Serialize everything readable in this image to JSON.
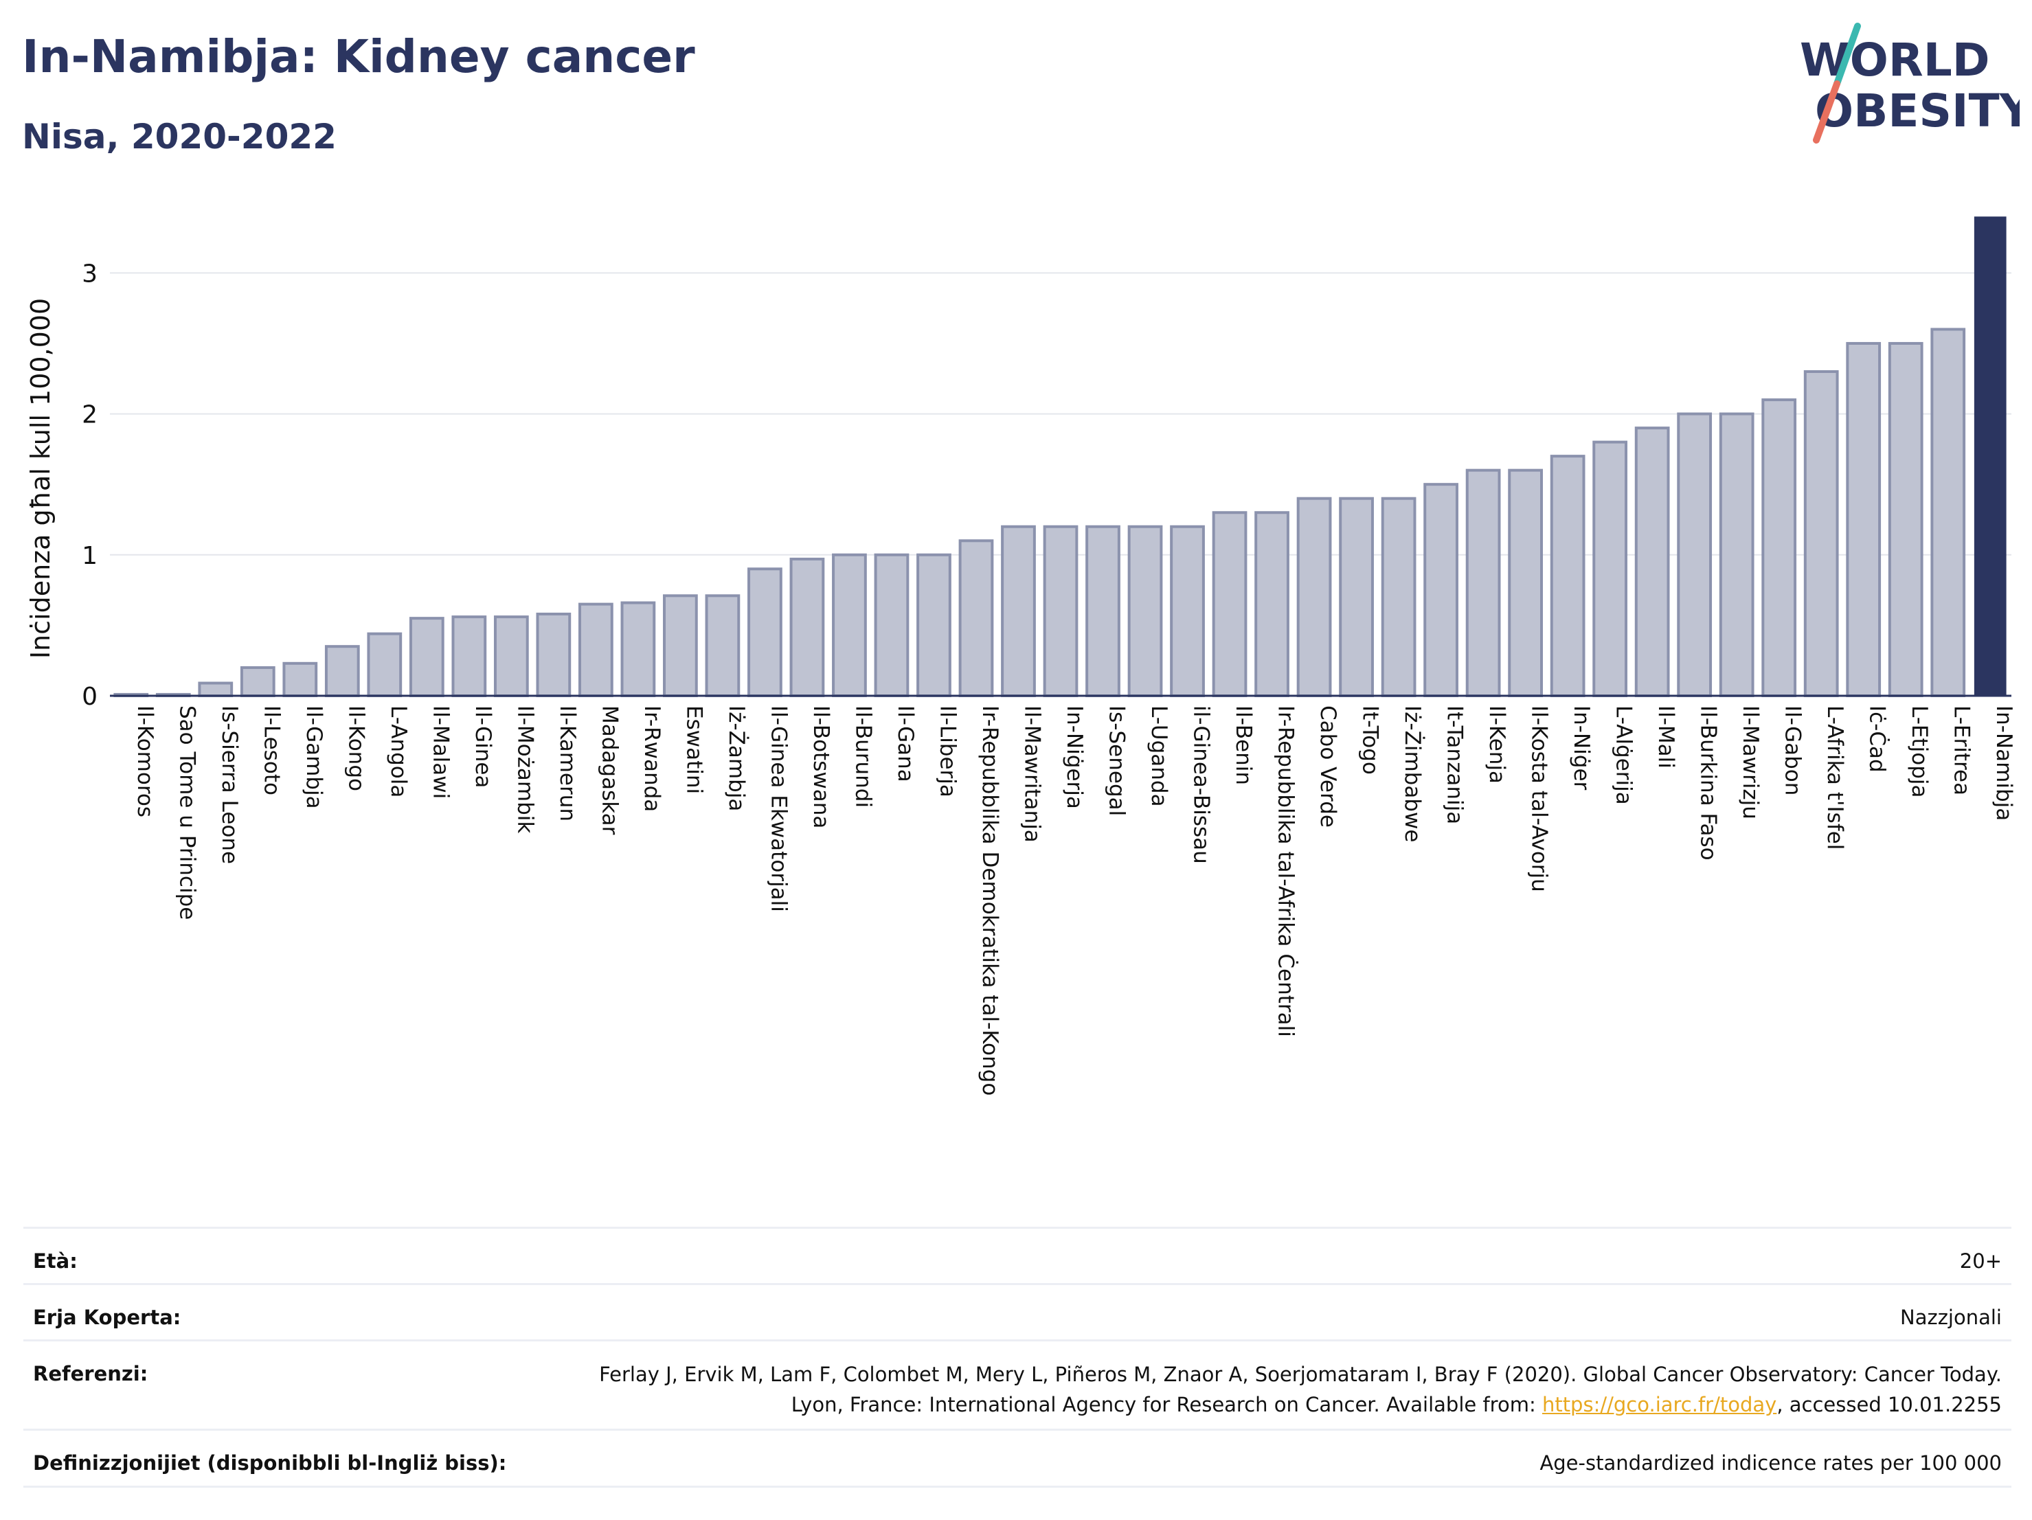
{
  "header": {
    "title": "In-Namibja: Kidney cancer",
    "subtitle": "Nisa, 2020-2022"
  },
  "logo": {
    "line1": "WORLD",
    "line2": "OBESITY"
  },
  "colors": {
    "bar_fill": "#bfc3d2",
    "bar_stroke": "#8b92ad",
    "highlight_bar": "#2b3560",
    "title": "#2b3560",
    "logo_slash_teal": "#3bb8b0",
    "logo_slash_coral": "#e8705e",
    "link": "#e8a820"
  },
  "chart_data": {
    "type": "bar",
    "title": "In-Namibja: Kidney cancer",
    "subtitle": "Nisa, 2020-2022",
    "xlabel": "",
    "ylabel": "Inċidenza għal kull 100,000",
    "ylim": [
      0,
      3.45
    ],
    "yticks": [
      0,
      1,
      2,
      3
    ],
    "grid": true,
    "highlight": "In-Namibja",
    "categories": [
      "Il-Komoros",
      "Sao Tome u Principe",
      "Is-Sierra Leone",
      "Il-Lesoto",
      "Il-Gambja",
      "Il-Kongo",
      "L-Angola",
      "Il-Malawi",
      "Il-Ginea",
      "Il-Możambik",
      "Il-Kamerun",
      "Madagaskar",
      "Ir-Rwanda",
      "Eswatini",
      "Iż-Żambja",
      "Il-Ginea Ekwatorjali",
      "Il-Botswana",
      "Il-Burundi",
      "Il-Gana",
      "Il-Liberja",
      "Ir-Repubblika Demokratika tal-Kongo",
      "Il-Mawritanja",
      "In-Niġerja",
      "Is-Senegal",
      "L-Uganda",
      "il-Ginea-Bissau",
      "Il-Benin",
      "Ir-Repubblika tal-Afrika Ċentrali",
      "Cabo Verde",
      "It-Togo",
      "Iż-Żimbabwe",
      "It-Tanzanija",
      "Il-Kenja",
      "Il-Kosta tal-Avorju",
      "In-Niġer",
      "L-Alġerija",
      "Il-Mali",
      "Il-Burkina Faso",
      "Il-Mawrizju",
      "Il-Gabon",
      "L-Afrika t'Isfel",
      "Iċ-Ċad",
      "L-Etjopja",
      "L-Eritrea",
      "In-Namibja"
    ],
    "values": [
      0.01,
      0.01,
      0.09,
      0.2,
      0.23,
      0.35,
      0.44,
      0.55,
      0.56,
      0.56,
      0.58,
      0.65,
      0.66,
      0.71,
      0.71,
      0.9,
      0.97,
      1.0,
      1.0,
      1.0,
      1.1,
      1.2,
      1.2,
      1.2,
      1.2,
      1.2,
      1.3,
      1.3,
      1.4,
      1.4,
      1.4,
      1.5,
      1.6,
      1.6,
      1.7,
      1.8,
      1.9,
      2.0,
      2.0,
      2.1,
      2.3,
      2.5,
      2.5,
      2.6,
      3.4
    ]
  },
  "meta": {
    "age_label": "Età:",
    "age_value": "20+",
    "area_label": "Erja Koperta:",
    "area_value": "Nazzjonali",
    "ref_label": "Referenzi:",
    "ref_text_1": "Ferlay J, Ervik M, Lam F, Colombet M, Mery L, Piñeros M, Znaor A, Soerjomataram I, Bray F (2020). Global Cancer Observatory: Cancer Today. Lyon, France: International Agency for Research on Cancer. Available from: ",
    "ref_link": "https://gco.iarc.fr/today",
    "ref_text_2": ", accessed 10.01.2255",
    "def_label": "Definizzjonijiet (disponibbli bl-Ingliż biss):",
    "def_value": "Age-standardized indicence rates per 100 000"
  }
}
